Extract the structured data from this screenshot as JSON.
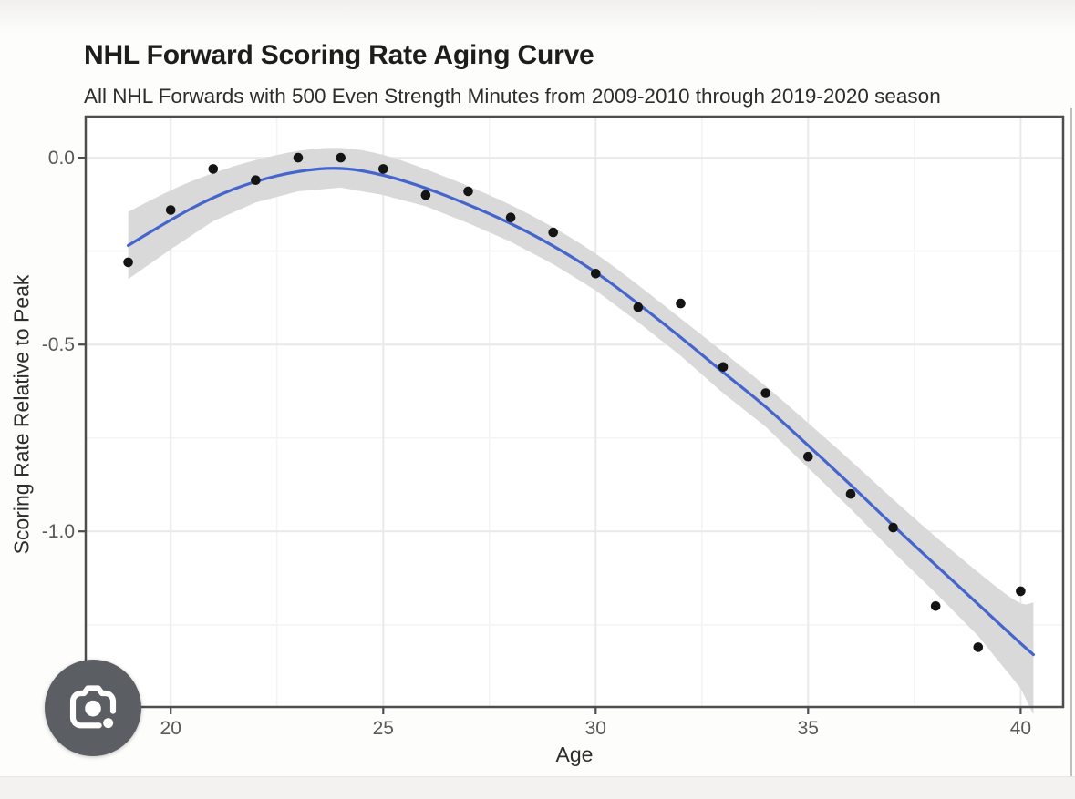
{
  "header": {
    "title": "NHL Forward Scoring Rate Aging Curve",
    "subtitle": "All NHL Forwards with 500 Even Strength Minutes from 2009-2010 through 2019-2020 season"
  },
  "icons": {
    "lens_button": "google-lens-camera-icon"
  },
  "chart_data": {
    "type": "scatter",
    "title": "NHL Forward Scoring Rate Aging Curve",
    "subtitle": "All NHL Forwards with 500 Even Strength Minutes from 2009-2010 through 2019-2020 season",
    "xlabel": "Age",
    "ylabel": "Scoring Rate Relative to Peak",
    "xlim": [
      18,
      41
    ],
    "ylim": [
      -1.47,
      0.11
    ],
    "grid": "major+minor",
    "legend": "none",
    "x_ticks": [
      {
        "label": "20",
        "value": 20
      },
      {
        "label": "25",
        "value": 25
      },
      {
        "label": "30",
        "value": 30
      },
      {
        "label": "35",
        "value": 35
      },
      {
        "label": "40",
        "value": 40
      }
    ],
    "y_ticks": [
      {
        "label": "0.0",
        "value": 0
      },
      {
        "label": "-0.5",
        "value": -0.5
      },
      {
        "label": "-1.0",
        "value": -1.0
      }
    ],
    "points": {
      "x": [
        19,
        20,
        21,
        22,
        23,
        24,
        25,
        26,
        27,
        28,
        29,
        30,
        31,
        32,
        33,
        34,
        35,
        36,
        37,
        38,
        39,
        40
      ],
      "y": [
        -0.28,
        -0.14,
        -0.03,
        -0.06,
        0,
        0,
        -0.03,
        -0.1,
        -0.09,
        -0.16,
        -0.2,
        -0.31,
        -0.4,
        -0.39,
        -0.56,
        -0.63,
        -0.8,
        -0.9,
        -0.99,
        -1.2,
        -1.31,
        -1.16
      ]
    },
    "fit_line": {
      "x": [
        19,
        20,
        21,
        22,
        23,
        24,
        25,
        26,
        27,
        28,
        29,
        30,
        31,
        32,
        33,
        34,
        35,
        36,
        37,
        38,
        39,
        40,
        40.3
      ],
      "y": [
        -0.235,
        -0.165,
        -0.105,
        -0.062,
        -0.035,
        -0.025,
        -0.045,
        -0.08,
        -0.125,
        -0.175,
        -0.235,
        -0.305,
        -0.39,
        -0.48,
        -0.575,
        -0.665,
        -0.77,
        -0.875,
        -0.985,
        -1.09,
        -1.195,
        -1.3,
        -1.33
      ]
    },
    "confidence_band": {
      "x": [
        19,
        20,
        21,
        22,
        23,
        24,
        25,
        26,
        27,
        28,
        29,
        30,
        31,
        32,
        33,
        34,
        35,
        36,
        37,
        38,
        39,
        40,
        40.3
      ],
      "upper": [
        -0.145,
        -0.085,
        -0.04,
        -0.005,
        0.02,
        0.03,
        0.01,
        -0.03,
        -0.075,
        -0.125,
        -0.185,
        -0.255,
        -0.34,
        -0.43,
        -0.52,
        -0.61,
        -0.71,
        -0.81,
        -0.915,
        -1.015,
        -1.11,
        -1.2,
        -1.19
      ],
      "lower": [
        -0.325,
        -0.245,
        -0.17,
        -0.12,
        -0.09,
        -0.08,
        -0.1,
        -0.13,
        -0.175,
        -0.225,
        -0.285,
        -0.355,
        -0.44,
        -0.53,
        -0.63,
        -0.72,
        -0.83,
        -0.94,
        -1.055,
        -1.165,
        -1.28,
        -1.42,
        -1.49
      ]
    },
    "colors": {
      "fit_line": "#4565cc",
      "confidence_band": "#d9d9d9",
      "points": "#141414",
      "grid_major": "#e9e9e9",
      "grid_minor": "#f4f4f4",
      "panel_border": "#4d4d4d",
      "axis_text": "#595959",
      "axis_title": "#2e2e2e",
      "title_text": "#1d1d1d",
      "lens_button_bg": "#5b5e62"
    }
  }
}
